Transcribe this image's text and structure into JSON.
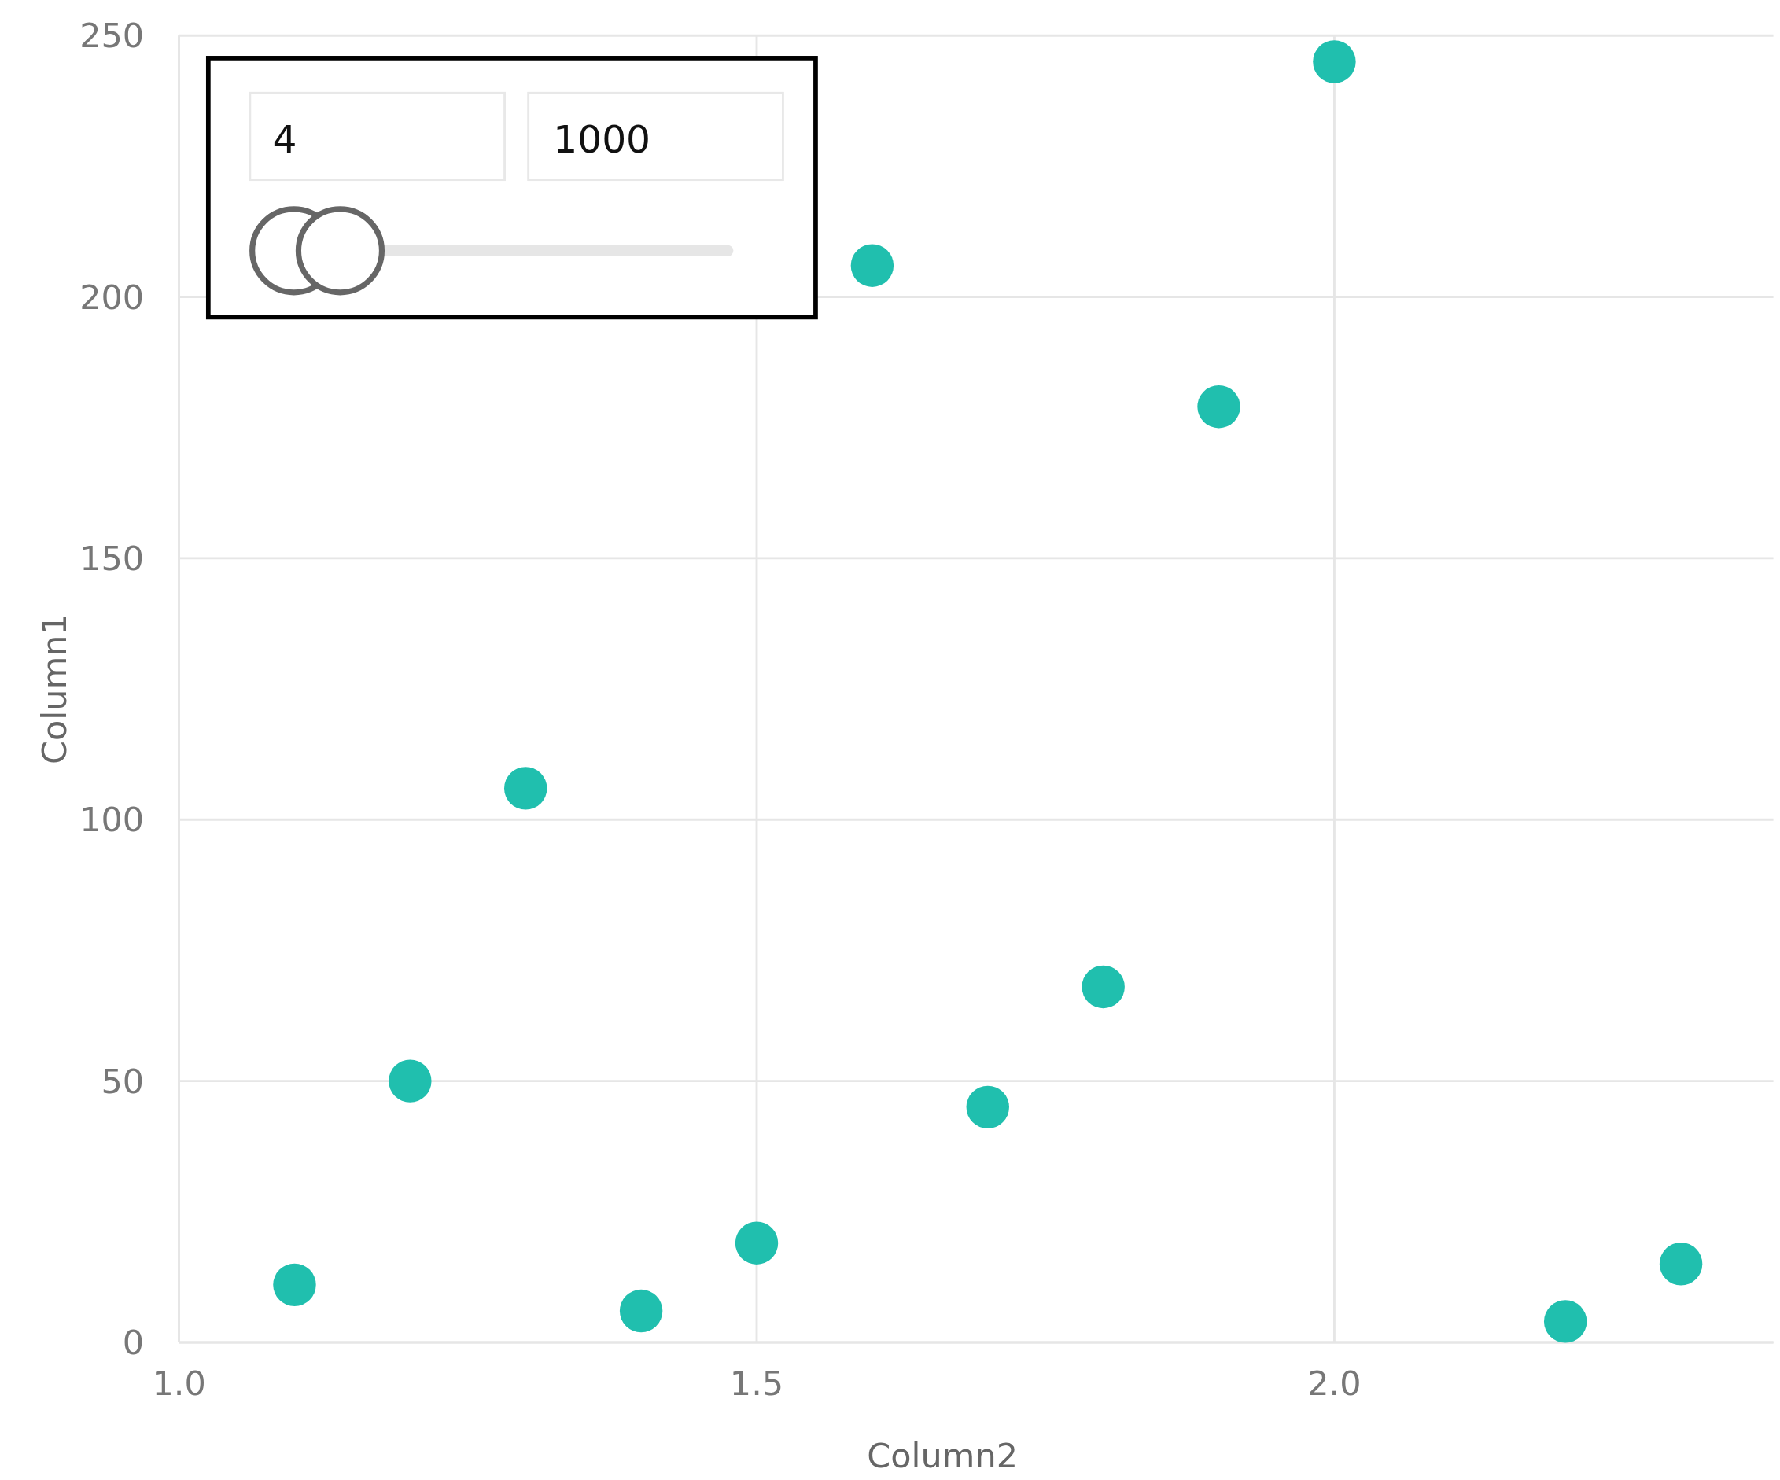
{
  "chart_data": {
    "type": "scatter",
    "xlabel": "Column2",
    "ylabel": "Column1",
    "x": [
      1.1,
      1.2,
      1.3,
      1.4,
      1.5,
      1.6,
      1.7,
      1.8,
      1.9,
      2.0,
      2.2,
      2.3
    ],
    "series": [
      {
        "color": "#20bfae",
        "values": [
          11,
          50,
          106,
          6,
          19,
          206,
          45,
          68,
          179,
          245,
          4,
          15
        ]
      }
    ],
    "xlim": [
      1.0,
      2.38
    ],
    "xticks": [
      {
        "value": 1.0,
        "label": "1.0"
      },
      {
        "value": 1.5,
        "label": "1.5"
      },
      {
        "value": 2.0,
        "label": "2.0"
      }
    ],
    "ylim": [
      0,
      250
    ],
    "yticks": [
      0,
      50,
      100,
      150,
      200,
      250
    ],
    "grid": true,
    "marker": "circle",
    "annotations": [
      "4",
      "1000"
    ]
  }
}
